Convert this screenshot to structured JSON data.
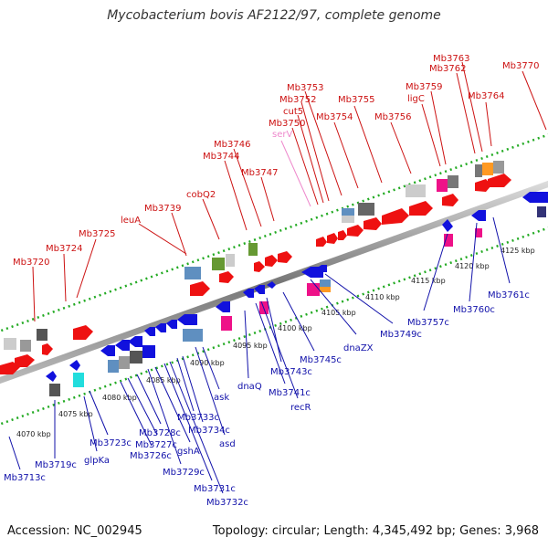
{
  "title": "Mycobacterium bovis AF2122/97, complete genome",
  "footer": {
    "accession": "Accession: NC_002945",
    "summary": "Topology: circular; Length: 4,345,492 bp; Genes: 3,968"
  },
  "colors": {
    "forward": "#ee1111",
    "reverse": "#1111dd",
    "rna": "#ee88cc",
    "backbone": "#888888",
    "ticks": "#22aa22"
  },
  "scale_labels": [
    "4070 kbp",
    "4075 kbp",
    "4080 kbp",
    "4085 kbp",
    "4090 kbp",
    "4095 kbp",
    "4100 kbp",
    "4105 kbp",
    "4110 kbp",
    "4115 kbp",
    "4120 kbp",
    "4125 kbp"
  ],
  "forward_genes": [
    "Mb3720",
    "Mb3724",
    "Mb3725",
    "leuA",
    "Mb3739",
    "cobQ2",
    "Mb3744",
    "Mb3746",
    "Mb3747",
    "serV",
    "Mb3750",
    "cut5",
    "Mb3752",
    "Mb3753",
    "Mb3754",
    "Mb3755",
    "Mb3756",
    "ligC",
    "Mb3759",
    "Mb3762",
    "Mb3763",
    "Mb3764",
    "Mb3770"
  ],
  "reverse_genes": [
    "Mb3713c",
    "Mb3719c",
    "glpKa",
    "Mb3723c",
    "Mb3726c",
    "Mb3727c",
    "Mb3728c",
    "Mb3729c",
    "gshA",
    "Mb3731c",
    "Mb3732c",
    "Mb3733c",
    "Mb3734c",
    "asd",
    "ask",
    "dnaQ",
    "Mb3741c",
    "recR",
    "Mb3743c",
    "Mb3745c",
    "dnaZX",
    "Mb3749c",
    "Mb3757c",
    "Mb3760c",
    "Mb3761c"
  ]
}
